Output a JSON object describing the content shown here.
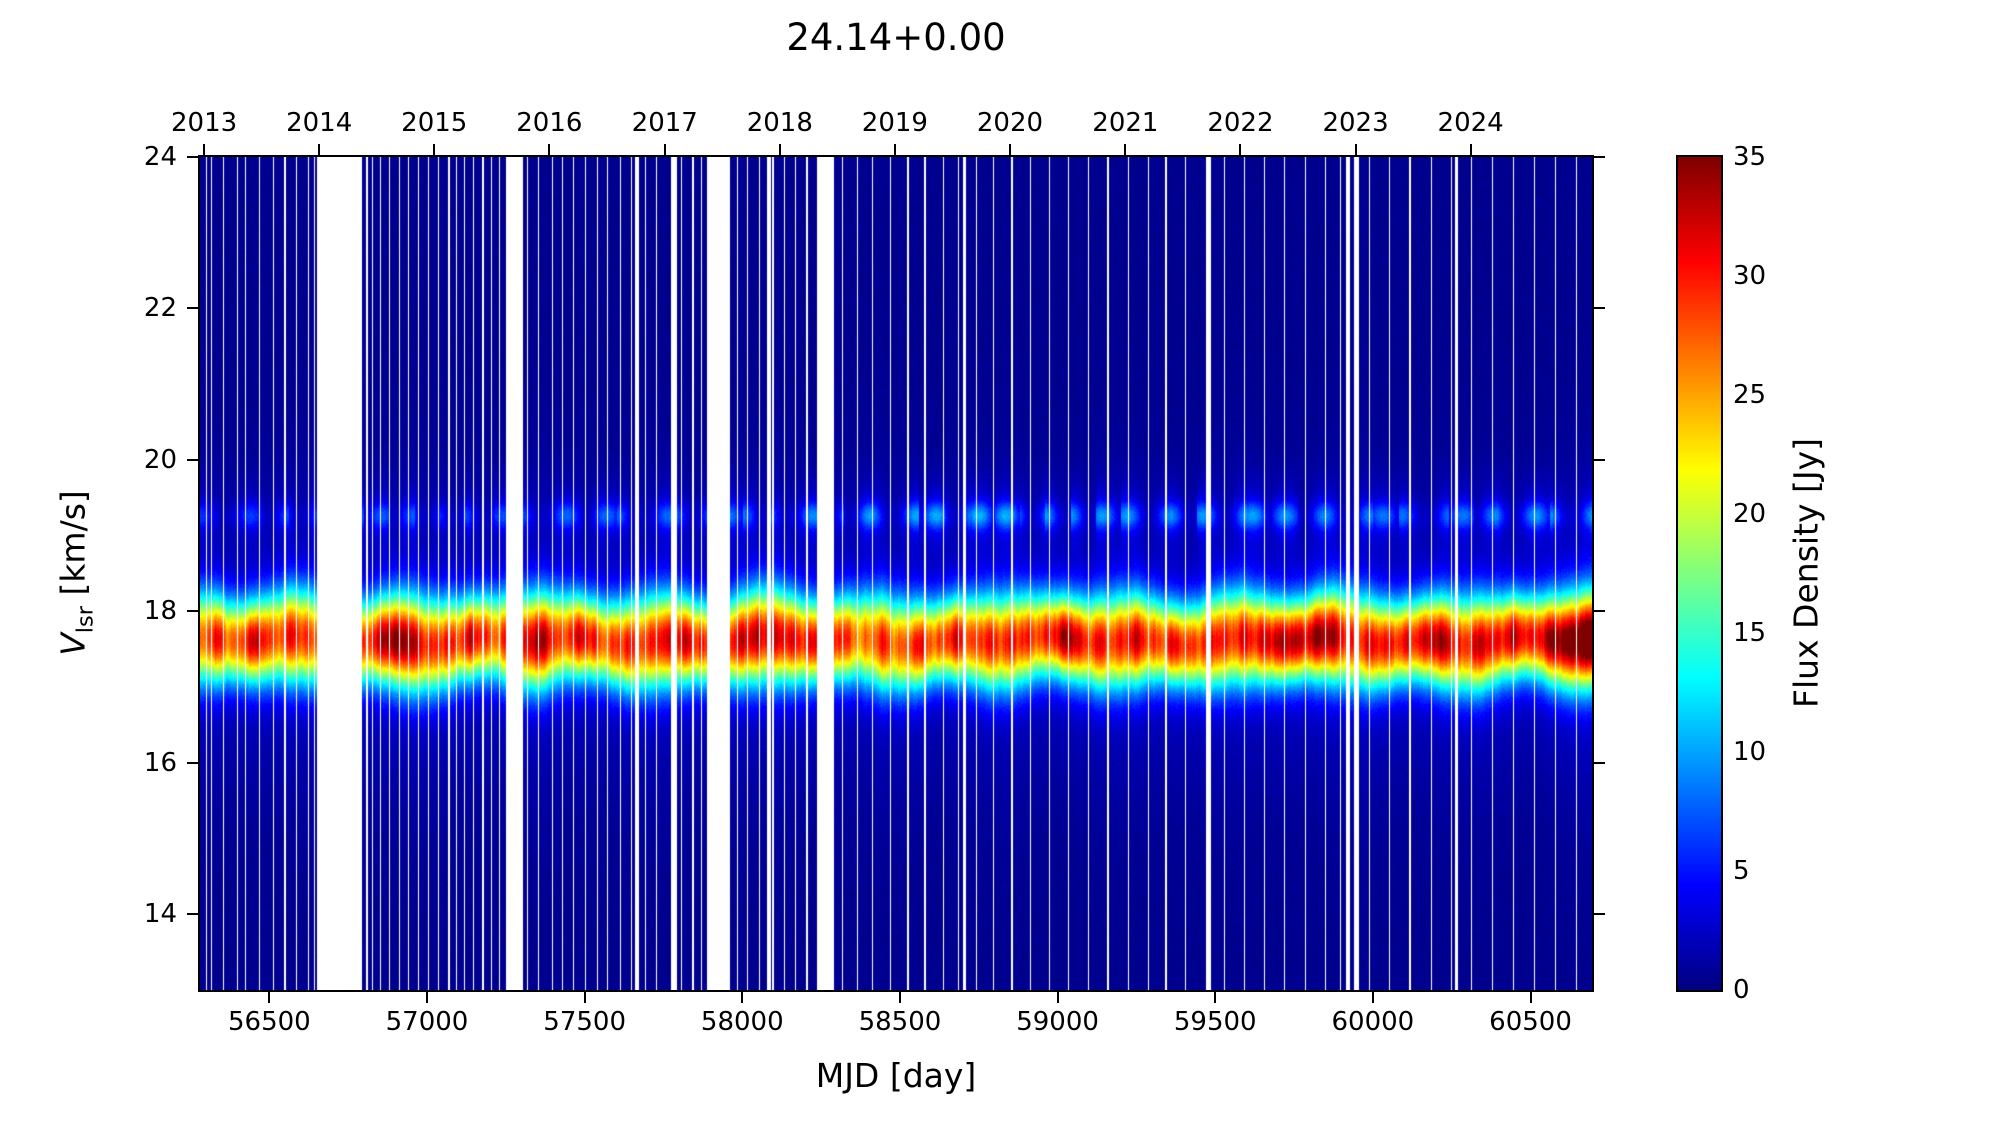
{
  "title": "24.14+0.00",
  "xlabel": "MJD [day]",
  "ylabel": {
    "var": "V",
    "sub": "lsr",
    "unit": " [km/s]"
  },
  "colorbar": {
    "label": "Flux Density [Jy]",
    "vmin": 0,
    "vmax": 35,
    "ticks": [
      0,
      5,
      10,
      15,
      20,
      25,
      30,
      35
    ],
    "colormap": "jet",
    "color_anchors": {
      "low": "#000080",
      "mid": "#00ffff",
      "high": "#800000"
    }
  },
  "axes": {
    "x": {
      "range": [
        56280,
        60695
      ],
      "ticks": [
        56500,
        57000,
        57500,
        58000,
        58500,
        59000,
        59500,
        60000,
        60500
      ]
    },
    "x_top": {
      "ticks": [
        {
          "label": "2013",
          "mjd": 56293
        },
        {
          "label": "2014",
          "mjd": 56658
        },
        {
          "label": "2015",
          "mjd": 57023
        },
        {
          "label": "2016",
          "mjd": 57388
        },
        {
          "label": "2017",
          "mjd": 57754
        },
        {
          "label": "2018",
          "mjd": 58119
        },
        {
          "label": "2019",
          "mjd": 58484
        },
        {
          "label": "2020",
          "mjd": 58849
        },
        {
          "label": "2021",
          "mjd": 59215
        },
        {
          "label": "2022",
          "mjd": 59580
        },
        {
          "label": "2023",
          "mjd": 59945
        },
        {
          "label": "2024",
          "mjd": 60310
        }
      ]
    },
    "y": {
      "range": [
        13,
        24
      ],
      "ticks": [
        24,
        22,
        20,
        18,
        16,
        14
      ]
    }
  },
  "chart_data": {
    "type": "heatmap",
    "title": "24.14+0.00",
    "xlabel": "MJD [day]",
    "ylabel": "V_lsr [km/s]",
    "zlabel": "Flux Density [Jy]",
    "xlim": [
      56280,
      60695
    ],
    "ylim": [
      13,
      24
    ],
    "zlim": [
      0,
      35
    ],
    "colormap": "jet",
    "background_noise_jy": 1.2,
    "main_maser_feature": {
      "center_velocity_kms": 17.62,
      "velocity_sigma_kms": 0.4,
      "center_jitter_kms": 0.05,
      "pedestal_fraction": 0.07,
      "pedestal_sigma_scale": 3.2,
      "amplitude_series": {
        "mjd": [
          56285,
          56320,
          56345,
          56370,
          56400,
          56440,
          56475,
          56505,
          56540,
          56575,
          56610,
          56650,
          56795,
          56840,
          56875,
          56905,
          56935,
          56965,
          56995,
          57025,
          57060,
          57100,
          57140,
          57175,
          57210,
          57245,
          57305,
          57340,
          57380,
          57420,
          57460,
          57500,
          57540,
          57580,
          57620,
          57660,
          57700,
          57740,
          57780,
          57820,
          57860,
          57965,
          58000,
          58035,
          58065,
          58100,
          58140,
          58180,
          58220,
          58295,
          58330,
          58370,
          58410,
          58450,
          58490,
          58530,
          58570,
          58610,
          58650,
          58690,
          58730,
          58770,
          58810,
          58850,
          58890,
          58930,
          58970,
          59010,
          59050,
          59090,
          59130,
          59170,
          59210,
          59250,
          59290,
          59330,
          59370,
          59410,
          59450,
          59500,
          59540,
          59580,
          59620,
          59660,
          59700,
          59740,
          59780,
          59820,
          59860,
          59900,
          59960,
          60000,
          60040,
          60080,
          60120,
          60160,
          60200,
          60240,
          60280,
          60320,
          60360,
          60400,
          60440,
          60480,
          60520,
          60560,
          60600,
          60640,
          60695
        ],
        "jy": [
          24,
          27,
          29,
          25,
          24,
          29,
          30,
          26,
          25,
          29,
          27,
          25,
          26,
          30,
          32,
          31,
          33,
          30,
          27,
          26,
          29,
          26,
          29,
          28,
          25,
          26,
          29,
          31,
          30,
          26,
          28,
          29,
          27,
          25,
          27,
          28,
          26,
          28,
          30,
          29,
          27,
          27,
          30,
          31,
          28,
          29,
          30,
          27,
          28,
          28,
          26,
          24,
          25,
          27,
          25,
          26,
          28,
          25,
          27,
          29,
          26,
          28,
          26,
          29,
          27,
          26,
          28,
          30,
          31,
          27,
          28,
          26,
          28,
          29,
          26,
          27,
          28,
          26,
          27,
          28,
          27,
          29,
          27,
          30,
          31,
          30,
          29,
          32,
          31,
          29,
          27,
          28,
          29,
          27,
          28,
          30,
          31,
          30,
          27,
          28,
          30,
          28,
          30,
          28,
          29,
          31,
          33,
          35,
          36
        ]
      }
    },
    "weak_feature": {
      "center_velocity_kms": 19.27,
      "velocity_sigma_kms": 0.12,
      "pedestal_fraction": 0.35,
      "pedestal_sigma_scale": 2.8,
      "amplitude_series": {
        "mjd": [
          56285,
          56600,
          56900,
          57200,
          57500,
          57800,
          58100,
          58400,
          58700,
          59000,
          59300,
          59600,
          59900,
          60200,
          60500,
          60695
        ],
        "jy": [
          3.5,
          4,
          4.5,
          4,
          5,
          5,
          5.5,
          6.5,
          7,
          6.5,
          6,
          6.5,
          5.5,
          5,
          6,
          6
        ]
      }
    },
    "data_gaps_mjd": [
      [
        56650,
        56792
      ],
      [
        57248,
        57302
      ],
      [
        57658,
        57670
      ],
      [
        57772,
        57792
      ],
      [
        57886,
        57958
      ],
      [
        58078,
        58090
      ],
      [
        58234,
        58288
      ],
      [
        58700,
        58708
      ],
      [
        59468,
        59484
      ],
      [
        59914,
        59926
      ],
      [
        59940,
        59954
      ],
      [
        60258,
        60268
      ]
    ],
    "thin_gaps_mjd": [
      56298,
      56315,
      56352,
      56398,
      56422,
      56466,
      56512,
      56548,
      56584,
      56622,
      56641,
      56808,
      56825,
      56852,
      56880,
      56912,
      56940,
      56972,
      57002,
      57036,
      57068,
      57092,
      57118,
      57146,
      57176,
      57204,
      57228,
      57318,
      57352,
      57396,
      57428,
      57464,
      57502,
      57538,
      57572,
      57612,
      57648,
      57692,
      57726,
      57806,
      57842,
      57868,
      57984,
      58016,
      58052,
      58096,
      58132,
      58168,
      58204,
      58316,
      58364,
      58412,
      58468,
      58524,
      58578,
      58636,
      58684,
      58742,
      58796,
      58854,
      58912,
      58972,
      59034,
      59096,
      59158,
      59224,
      59286,
      59342,
      59404,
      59528,
      59592,
      59654,
      59718,
      59784,
      59848,
      59896,
      59988,
      60052,
      60116,
      60184,
      60248,
      60312,
      60378,
      60444,
      60512,
      60578,
      60644
    ],
    "thin_gap_halfwidth_days": 2.0
  }
}
